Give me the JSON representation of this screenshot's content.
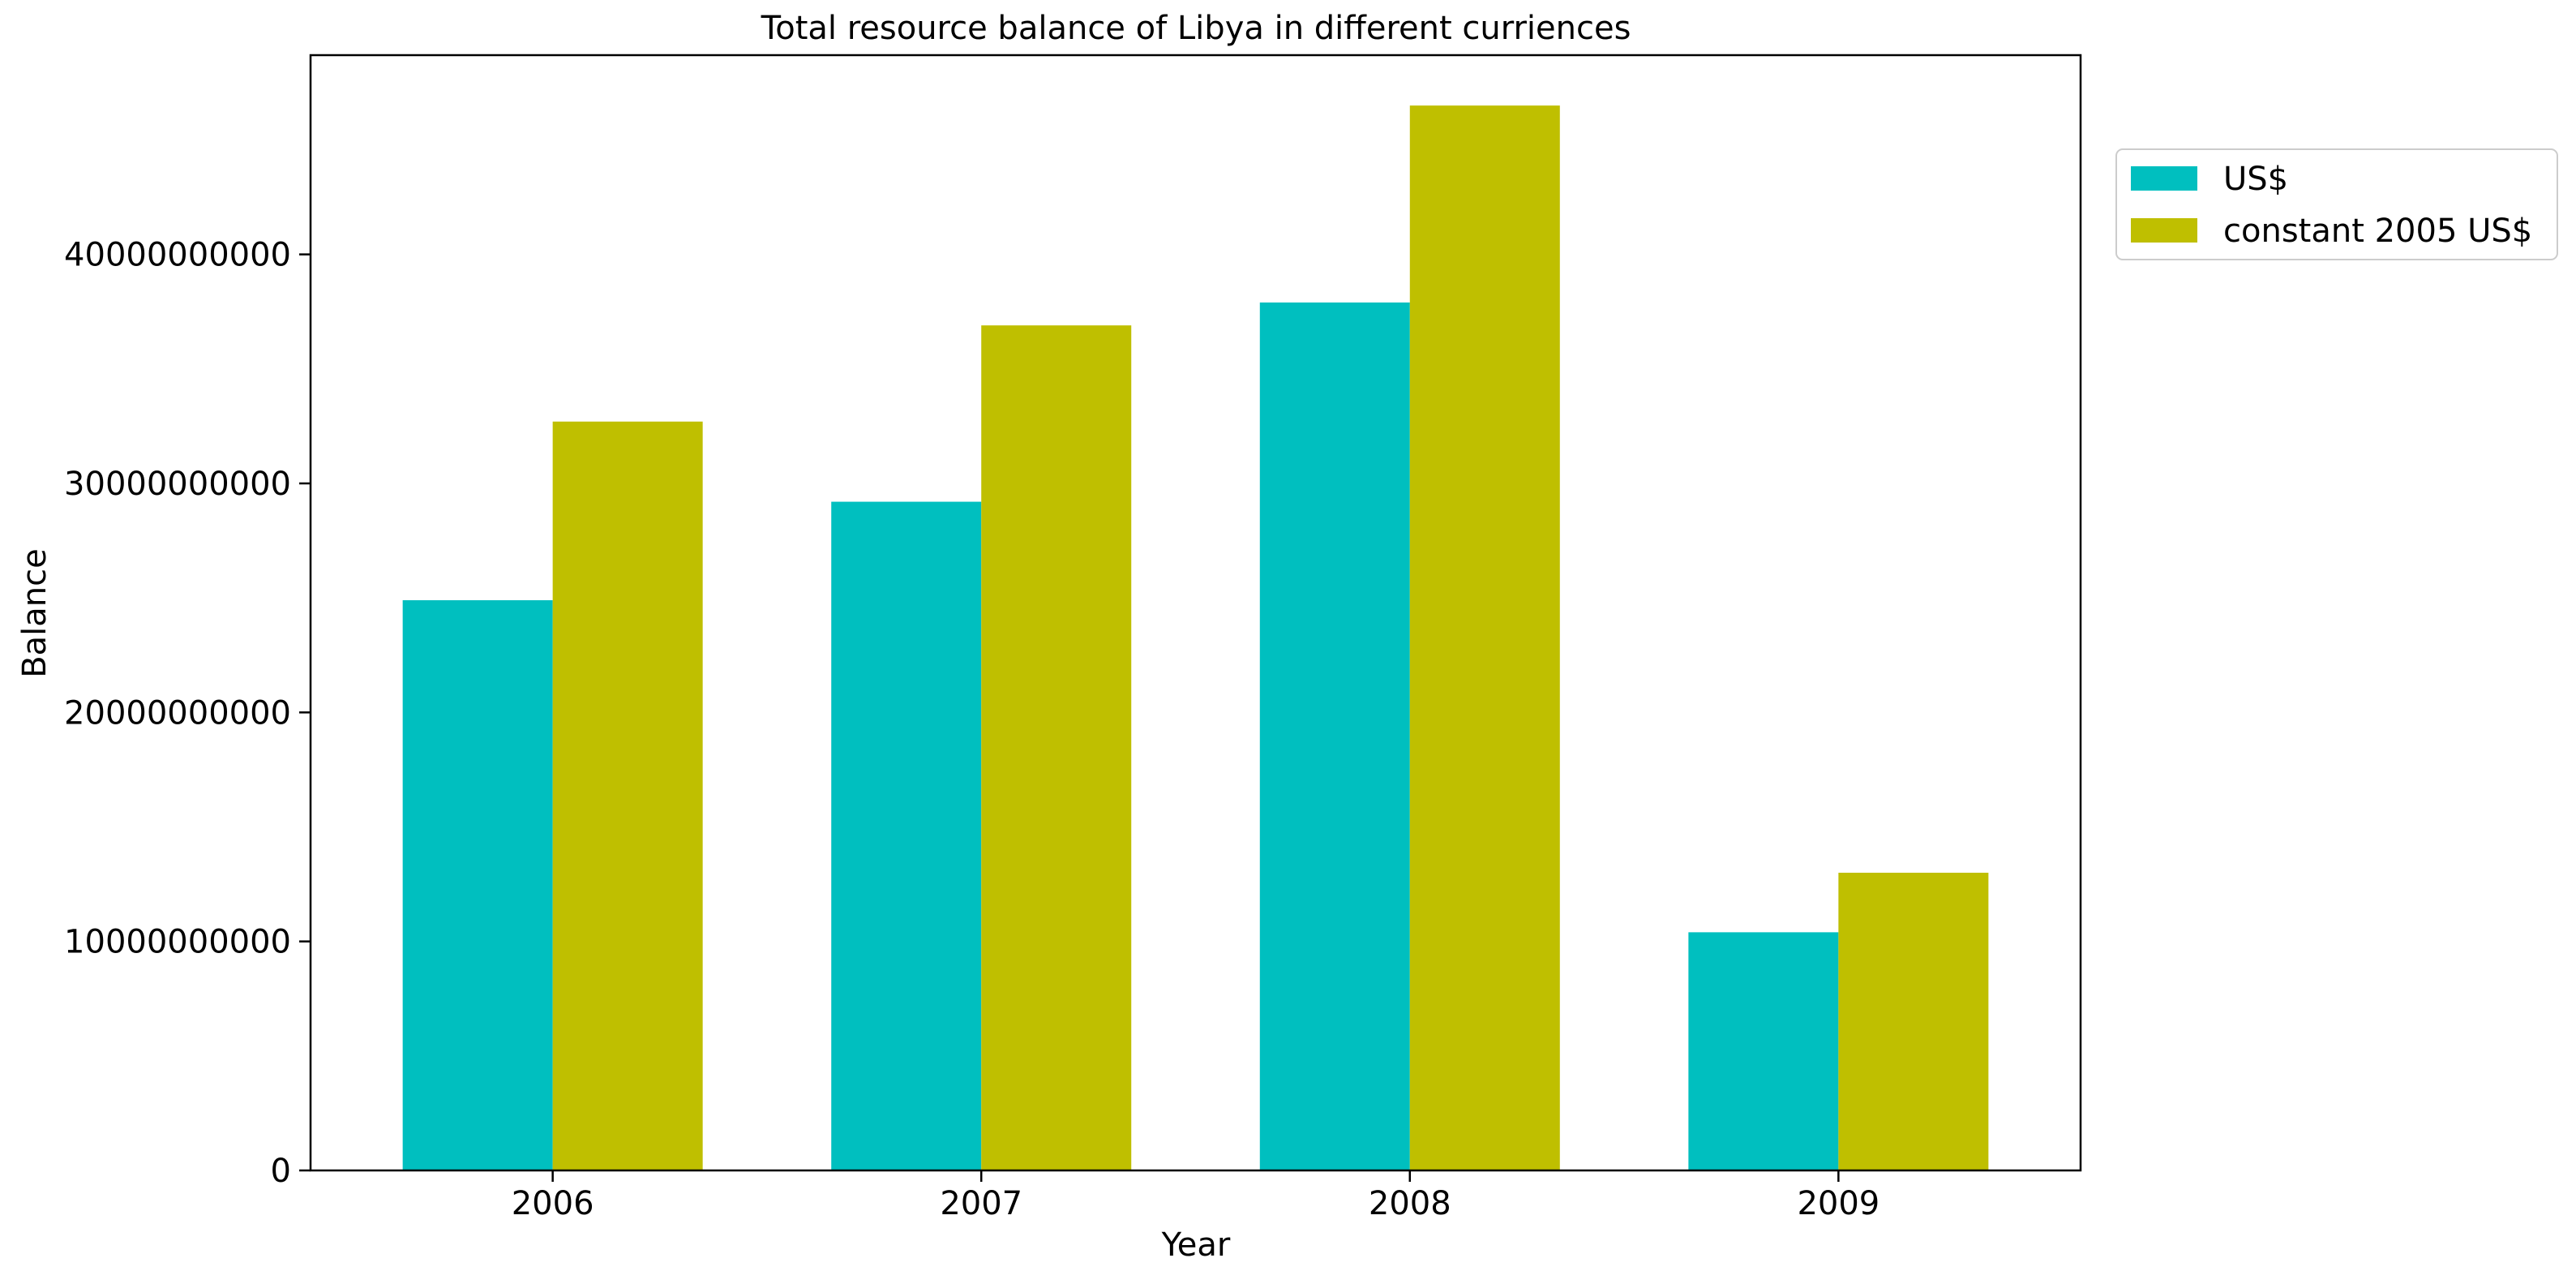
{
  "chart_data": {
    "type": "bar",
    "title": "Total resource balance of Libya in different curriences",
    "xlabel": "Year",
    "ylabel": "Balance",
    "categories": [
      "2006",
      "2007",
      "2008",
      "2009"
    ],
    "series": [
      {
        "name": "US$",
        "color": "#00bfbf",
        "values": [
          24900000000,
          29200000000,
          37900000000,
          10400000000
        ]
      },
      {
        "name": "constant 2005 US$",
        "color": "#bfbf00",
        "values": [
          32700000000,
          36900000000,
          46500000000,
          13000000000
        ]
      }
    ],
    "ylim": [
      0,
      48700000000
    ],
    "yticks": [
      0,
      10000000000,
      20000000000,
      30000000000,
      40000000000
    ],
    "ytick_labels": [
      "0",
      "10000000000",
      "20000000000",
      "30000000000",
      "40000000000"
    ],
    "grid": false,
    "legend_position": "outside-top-right"
  }
}
